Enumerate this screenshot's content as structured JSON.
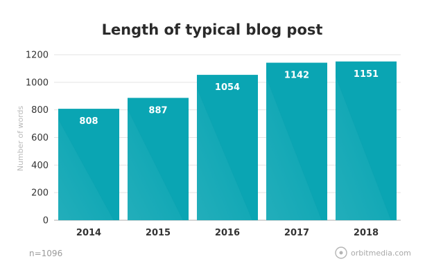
{
  "chart_data": {
    "type": "bar",
    "title": "Length of typical blog post",
    "ylabel": "Number of words",
    "xlabel": "",
    "categories": [
      "2014",
      "2015",
      "2016",
      "2017",
      "2018"
    ],
    "values": [
      808,
      887,
      1054,
      1142,
      1151
    ],
    "data_labels": [
      "808",
      "887",
      "1054",
      "1142",
      "1151"
    ],
    "ylim": [
      0,
      1200
    ],
    "yticks": [
      0,
      200,
      400,
      600,
      800,
      1000,
      1200
    ],
    "ytick_labels": [
      "0",
      "200",
      "400",
      "600",
      "800",
      "1000",
      "1200"
    ],
    "grid": true,
    "bar_color": "#0aa5b3"
  },
  "footer": {
    "sample_note": "n=1096",
    "brand": "orbitmedia.com",
    "brand_icon": "orbit-logo-icon"
  }
}
